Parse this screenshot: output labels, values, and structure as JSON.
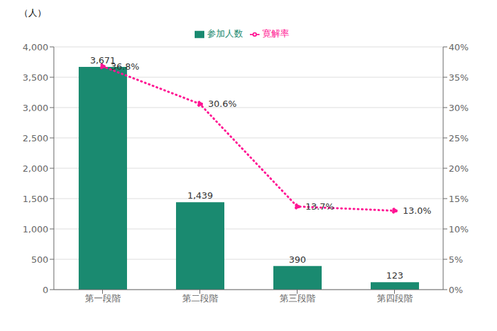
{
  "chart_data": {
    "type": "bar",
    "categories": [
      "第一段階",
      "第二段階",
      "第三段階",
      "第四段階"
    ],
    "ylabel": "（人）",
    "series": [
      {
        "name": "参加人数",
        "type": "bar",
        "color": "#1a8a70",
        "values": [
          3671,
          1439,
          390,
          123
        ],
        "value_labels": [
          "3,671",
          "1,439",
          "390",
          "123"
        ]
      },
      {
        "name": "寛解率",
        "type": "line",
        "axis": "y2",
        "color": "#ff1493",
        "line_style": "dotted",
        "marker": "circle",
        "values": [
          36.8,
          30.6,
          13.7,
          13.0
        ],
        "value_labels": [
          "36.8%",
          "30.6%",
          "13.7%",
          "13.0%"
        ]
      }
    ],
    "ylim": [
      0,
      4000
    ],
    "yticks": [
      0,
      500,
      {
        "value": 1000,
        "label": "1,000"
      },
      {
        "value": 1500,
        "label": "1,500"
      },
      {
        "value": 2000,
        "label": "2,000"
      },
      {
        "value": 2500,
        "label": "2,500"
      },
      {
        "value": 3000,
        "label": "3,000"
      },
      {
        "value": 3500,
        "label": "3,500"
      },
      {
        "value": 4000,
        "label": "4,000"
      }
    ],
    "y2lim": [
      0,
      40
    ],
    "y2ticks": [
      {
        "value": 0,
        "label": "0%"
      },
      {
        "value": 5,
        "label": "5%"
      },
      {
        "value": 10,
        "label": "10%"
      },
      {
        "value": 15,
        "label": "15%"
      },
      {
        "value": 20,
        "label": "20%"
      },
      {
        "value": 25,
        "label": "25%"
      },
      {
        "value": 30,
        "label": "30%"
      },
      {
        "value": 35,
        "label": "35%"
      },
      {
        "value": 40,
        "label": "40%"
      }
    ],
    "grid": true,
    "legend": "upper center",
    "data_labels": true
  }
}
